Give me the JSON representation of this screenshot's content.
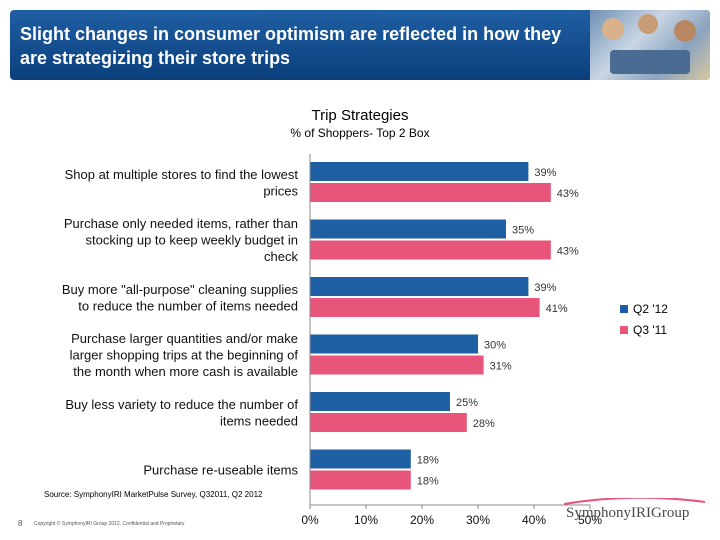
{
  "slide": {
    "title": "Slight changes in consumer optimism are reflected in how they are strategizing their store trips",
    "source": "Source:  SymphonyIRI MarketPulse Survey, Q32011, Q2 2012",
    "page_number": "8",
    "copyright": "Copyright © SymphonyIRI Group 2012. Confidential and Proprietary",
    "logo_text": "SymphonyIRIGroup"
  },
  "chart_data": {
    "type": "bar",
    "orientation": "horizontal",
    "title": "Trip Strategies",
    "subtitle": "%  of Shoppers- Top 2 Box",
    "categories": [
      [
        "Shop at multiple stores to find the lowest",
        "prices"
      ],
      [
        "Purchase only needed items, rather than",
        "stocking up to keep weekly budget in",
        "check"
      ],
      [
        "Buy more \"all-purpose\" cleaning supplies",
        "to reduce the number of items needed"
      ],
      [
        "Purchase larger quantities and/or make",
        "larger shopping trips at the beginning of",
        "the month when more cash is available"
      ],
      [
        "Buy less variety to reduce the number of",
        "items needed"
      ],
      [
        "Purchase re-useable items"
      ]
    ],
    "series": [
      {
        "name": "Q2 '12",
        "color": "#1f5fa3",
        "values": [
          39,
          35,
          39,
          30,
          25,
          18
        ],
        "labels": [
          "39%",
          "35%",
          "39%",
          "30%",
          "25%",
          "18%"
        ]
      },
      {
        "name": "Q3 '11",
        "color": "#e8557a",
        "values": [
          43,
          43,
          41,
          31,
          28,
          18
        ],
        "labels": [
          "43%",
          "43%",
          "41%",
          "31%",
          "28%",
          "18%"
        ]
      }
    ],
    "xlim": [
      0,
      50
    ],
    "ticks": [
      0,
      10,
      20,
      30,
      40,
      50
    ],
    "tick_labels": [
      "0%",
      "10%",
      "20%",
      "30%",
      "40%",
      "50%"
    ],
    "grid": false,
    "legend_position": "right"
  }
}
